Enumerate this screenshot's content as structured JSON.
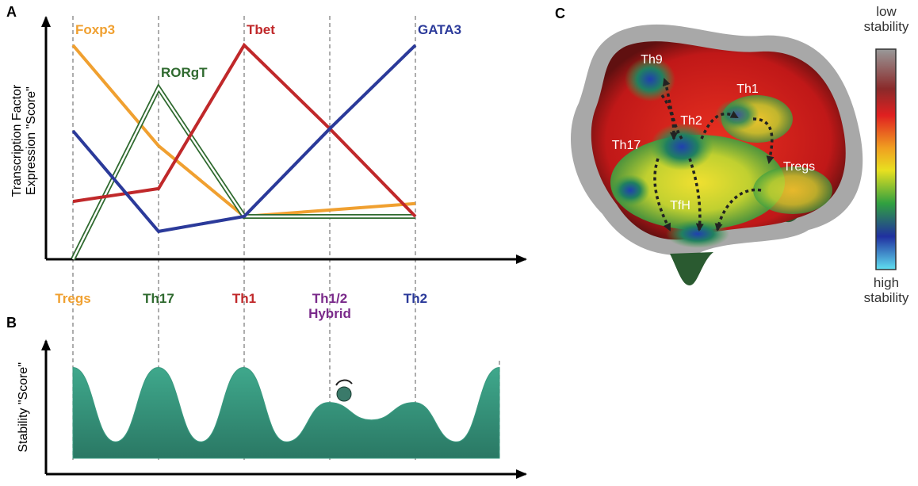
{
  "panels": {
    "a": "A",
    "b": "B",
    "c": "C"
  },
  "chart_data": [
    {
      "type": "line",
      "y_label": "Transcription Factor Expression \"Score\"",
      "categories": [
        "Tregs",
        "Th17",
        "Th1",
        "Th1/2 Hybrid",
        "Th2"
      ],
      "category_colors": [
        "#f0a030",
        "#2f6a2f",
        "#c0282a",
        "#7a2a8a",
        "#2b3a9a"
      ],
      "ylim": [
        0,
        100
      ],
      "series": [
        {
          "name": "Foxp3",
          "color": "#f0a030",
          "values": [
            100,
            53,
            20,
            23,
            26
          ]
        },
        {
          "name": "RORgT",
          "color": "#2f6a2f",
          "style": "double",
          "values": [
            0,
            80,
            20,
            20,
            20
          ]
        },
        {
          "name": "Tbet",
          "color": "#c0282a",
          "values": [
            27,
            33,
            100,
            61,
            20
          ]
        },
        {
          "name": "GATA3",
          "color": "#2b3a9a",
          "values": [
            60,
            13,
            20,
            61,
            100
          ]
        }
      ]
    },
    {
      "type": "area",
      "y_label": "Stability \"Score\"",
      "color": "#3a9a80",
      "x": [
        0,
        0.5,
        1,
        1.5,
        2,
        2.5,
        3,
        3.5,
        4,
        4.5,
        5
      ],
      "xlim": [
        0,
        5
      ],
      "ylim": [
        0,
        100
      ],
      "values": [
        83,
        15,
        83,
        15,
        83,
        15,
        51,
        35,
        51,
        15,
        83
      ]
    }
  ],
  "landscape": {
    "labels": [
      "Th9",
      "Th2",
      "Th1",
      "Th17",
      "Tregs",
      "TfH"
    ],
    "colorbar": {
      "top": "low stability",
      "bottom": "high stability"
    }
  }
}
